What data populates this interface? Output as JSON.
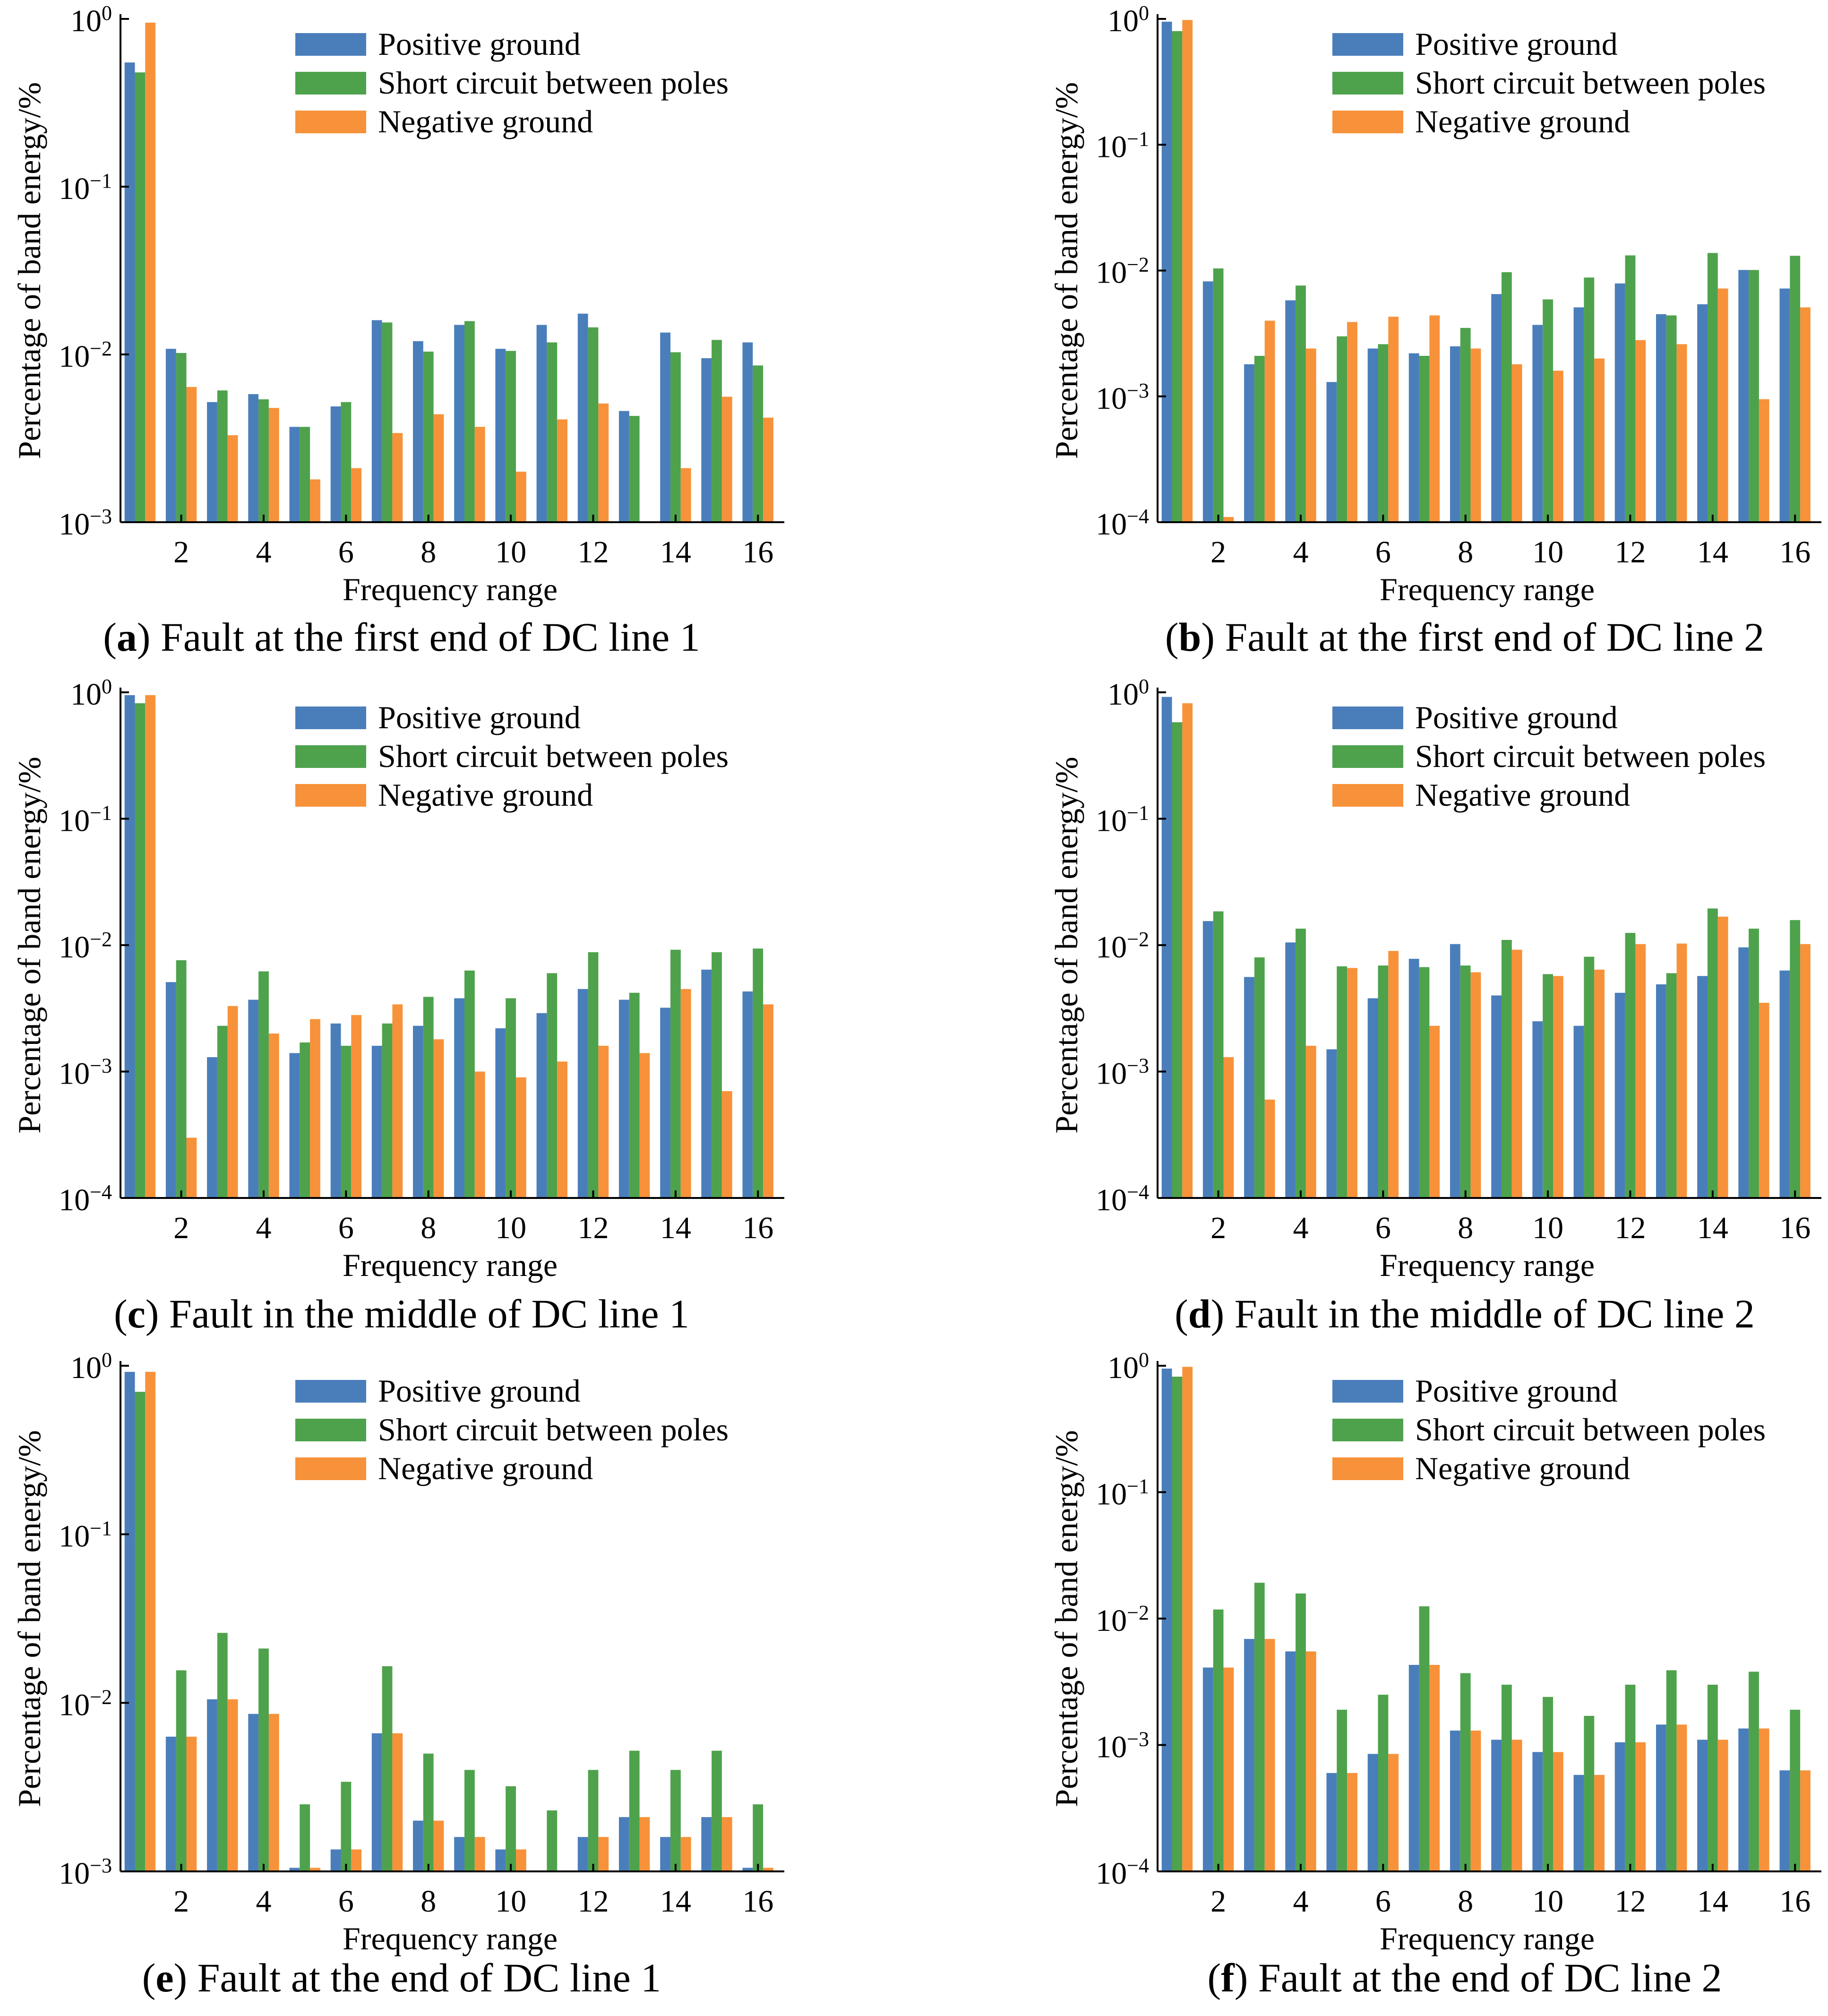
{
  "figure": {
    "legend": [
      "Positive ground",
      "Short circuit between poles",
      "Negative ground"
    ],
    "series_colors": [
      "#4a7ebb",
      "#4ea24c",
      "#f7923a"
    ],
    "xlabel": "Frequency range",
    "ylabel": "Percentage of band energy/%"
  },
  "chart_data": [
    {
      "type": "bar",
      "id": "a",
      "label_letter": "a",
      "caption": " Fault at the first end of DC line 1",
      "yscale": "log",
      "ylim": [
        0.001,
        1
      ],
      "ytick_exponents": [
        "0",
        "−1",
        "−2",
        "−3"
      ],
      "categories": [
        1,
        2,
        3,
        4,
        5,
        6,
        7,
        8,
        9,
        10,
        11,
        12,
        13,
        14,
        15,
        16
      ],
      "xticks": [
        2,
        4,
        6,
        8,
        10,
        12,
        14,
        16
      ],
      "xlabel": "Frequency range",
      "ylabel": "Percentage of band energy/%",
      "series": [
        {
          "name": "Positive ground",
          "values": [
            0.55,
            0.0108,
            0.0052,
            0.0058,
            0.0037,
            0.0049,
            0.016,
            0.012,
            0.015,
            0.0108,
            0.015,
            0.0175,
            0.0046,
            0.0135,
            0.0095,
            0.0118
          ]
        },
        {
          "name": "Short circuit between poles",
          "values": [
            0.48,
            0.0102,
            0.0061,
            0.0054,
            0.0037,
            0.0052,
            0.0155,
            0.0104,
            0.0158,
            0.0105,
            0.0118,
            0.0145,
            0.0043,
            0.0103,
            0.0122,
            0.0086
          ]
        },
        {
          "name": "Negative ground",
          "values": [
            0.95,
            0.0064,
            0.0033,
            0.0048,
            0.0018,
            0.0021,
            0.0034,
            0.0044,
            0.0037,
            0.002,
            0.0041,
            0.0051,
            0.001,
            0.0021,
            0.0056,
            0.0042
          ]
        }
      ]
    },
    {
      "type": "bar",
      "id": "b",
      "label_letter": "b",
      "caption": " Fault at the first end of DC line 2",
      "yscale": "log",
      "ylim": [
        0.0001,
        1
      ],
      "ytick_exponents": [
        "0",
        "−1",
        "−2",
        "−3",
        "−4"
      ],
      "categories": [
        1,
        2,
        3,
        4,
        5,
        6,
        7,
        8,
        9,
        10,
        11,
        12,
        13,
        14,
        15,
        16
      ],
      "xticks": [
        2,
        4,
        6,
        8,
        10,
        12,
        14,
        16
      ],
      "xlabel": "Frequency range",
      "ylabel": "Percentage of band energy/%",
      "series": [
        {
          "name": "Positive ground",
          "values": [
            0.95,
            0.0082,
            0.0018,
            0.0058,
            0.0013,
            0.0024,
            0.0022,
            0.0025,
            0.0065,
            0.0037,
            0.0051,
            0.0079,
            0.0045,
            0.0054,
            0.0101,
            0.0072
          ]
        },
        {
          "name": "Short circuit between poles",
          "values": [
            0.8,
            0.0104,
            0.0021,
            0.0076,
            0.003,
            0.0026,
            0.0021,
            0.0035,
            0.0097,
            0.0059,
            0.0088,
            0.0132,
            0.0044,
            0.0138,
            0.0101,
            0.0131
          ]
        },
        {
          "name": "Negative ground",
          "values": [
            0.98,
            0.00011,
            0.004,
            0.0024,
            0.0039,
            0.0043,
            0.0044,
            0.0024,
            0.0018,
            0.0016,
            0.002,
            0.0028,
            0.0026,
            0.0072,
            0.00095,
            0.0051
          ]
        }
      ]
    },
    {
      "type": "bar",
      "id": "c",
      "label_letter": "c",
      "caption": " Fault in the middle of DC line 1",
      "yscale": "log",
      "ylim": [
        0.0001,
        1
      ],
      "ytick_exponents": [
        "0",
        "−1",
        "−2",
        "−3",
        "−4"
      ],
      "categories": [
        1,
        2,
        3,
        4,
        5,
        6,
        7,
        8,
        9,
        10,
        11,
        12,
        13,
        14,
        15,
        16
      ],
      "xticks": [
        2,
        4,
        6,
        8,
        10,
        12,
        14,
        16
      ],
      "xlabel": "Frequency range",
      "ylabel": "Percentage of band energy/%",
      "series": [
        {
          "name": "Positive ground",
          "values": [
            0.95,
            0.0051,
            0.0013,
            0.0037,
            0.0014,
            0.0024,
            0.0016,
            0.0023,
            0.0038,
            0.0022,
            0.0029,
            0.0045,
            0.0037,
            0.0032,
            0.0064,
            0.0043
          ]
        },
        {
          "name": "Short circuit between poles",
          "values": [
            0.82,
            0.0076,
            0.0023,
            0.0062,
            0.0017,
            0.0016,
            0.0024,
            0.0039,
            0.0063,
            0.0038,
            0.006,
            0.0088,
            0.0042,
            0.0092,
            0.0088,
            0.0094
          ]
        },
        {
          "name": "Negative ground",
          "values": [
            0.95,
            0.0003,
            0.0033,
            0.002,
            0.0026,
            0.0028,
            0.0034,
            0.0018,
            0.001,
            0.0009,
            0.0012,
            0.0016,
            0.0014,
            0.0045,
            0.0007,
            0.0034
          ]
        }
      ]
    },
    {
      "type": "bar",
      "id": "d",
      "label_letter": "d",
      "caption": " Fault in the middle of DC line 2",
      "yscale": "log",
      "ylim": [
        0.0001,
        1
      ],
      "ytick_exponents": [
        "0",
        "−1",
        "−2",
        "−3",
        "−4"
      ],
      "categories": [
        1,
        2,
        3,
        4,
        5,
        6,
        7,
        8,
        9,
        10,
        11,
        12,
        13,
        14,
        15,
        16
      ],
      "xticks": [
        2,
        4,
        6,
        8,
        10,
        12,
        14,
        16
      ],
      "xlabel": "Frequency range",
      "ylabel": "Percentage of band energy/%",
      "series": [
        {
          "name": "Positive ground",
          "values": [
            0.92,
            0.0155,
            0.0056,
            0.0105,
            0.0015,
            0.0038,
            0.0078,
            0.0102,
            0.004,
            0.0025,
            0.0023,
            0.0042,
            0.0049,
            0.0057,
            0.0096,
            0.0063
          ]
        },
        {
          "name": "Short circuit between poles",
          "values": [
            0.58,
            0.0185,
            0.008,
            0.0135,
            0.0068,
            0.0069,
            0.0067,
            0.0069,
            0.011,
            0.0059,
            0.0081,
            0.0125,
            0.006,
            0.0195,
            0.0135,
            0.0158
          ]
        },
        {
          "name": "Negative ground",
          "values": [
            0.82,
            0.0013,
            0.0006,
            0.0016,
            0.0066,
            0.009,
            0.0023,
            0.0061,
            0.0092,
            0.0057,
            0.0064,
            0.0102,
            0.0103,
            0.0168,
            0.0035,
            0.0102
          ]
        }
      ]
    },
    {
      "type": "bar",
      "id": "e",
      "label_letter": "e",
      "caption": " Fault at the end of DC line 1",
      "yscale": "log",
      "ylim": [
        0.001,
        1
      ],
      "ytick_exponents": [
        "0",
        "−1",
        "−2",
        "−3"
      ],
      "categories": [
        1,
        2,
        3,
        4,
        5,
        6,
        7,
        8,
        9,
        10,
        11,
        12,
        13,
        14,
        15,
        16
      ],
      "xticks": [
        2,
        4,
        6,
        8,
        10,
        12,
        14,
        16
      ],
      "xlabel": "Frequency range",
      "ylabel": "Percentage of band energy/%",
      "series": [
        {
          "name": "Positive ground",
          "values": [
            0.92,
            0.0063,
            0.0105,
            0.0086,
            0.00105,
            0.00135,
            0.0066,
            0.002,
            0.0016,
            0.00135,
            0.001,
            0.0016,
            0.0021,
            0.0016,
            0.0021,
            0.00105
          ]
        },
        {
          "name": "Short circuit between poles",
          "values": [
            0.7,
            0.0156,
            0.026,
            0.021,
            0.0025,
            0.0034,
            0.0165,
            0.005,
            0.004,
            0.0032,
            0.0023,
            0.004,
            0.0052,
            0.004,
            0.0052,
            0.0025
          ]
        },
        {
          "name": "Negative ground",
          "values": [
            0.92,
            0.0063,
            0.0105,
            0.0086,
            0.00105,
            0.00135,
            0.0066,
            0.002,
            0.0016,
            0.00135,
            0.001,
            0.0016,
            0.0021,
            0.0016,
            0.0021,
            0.00105
          ]
        }
      ]
    },
    {
      "type": "bar",
      "id": "f",
      "label_letter": "f",
      "caption": " Fault at the end of DC line 2",
      "yscale": "log",
      "ylim": [
        0.0001,
        1
      ],
      "ytick_exponents": [
        "0",
        "−1",
        "−2",
        "−3",
        "−4"
      ],
      "categories": [
        1,
        2,
        3,
        4,
        5,
        6,
        7,
        8,
        9,
        10,
        11,
        12,
        13,
        14,
        15,
        16
      ],
      "xticks": [
        2,
        4,
        6,
        8,
        10,
        12,
        14,
        16
      ],
      "xlabel": "Frequency range",
      "ylabel": "Percentage of band energy/%",
      "series": [
        {
          "name": "Positive ground",
          "values": [
            0.95,
            0.0041,
            0.0069,
            0.0055,
            0.0006,
            0.00085,
            0.0043,
            0.0013,
            0.0011,
            0.00088,
            0.00058,
            0.00105,
            0.00145,
            0.0011,
            0.00135,
            0.00063
          ]
        },
        {
          "name": "Short circuit between poles",
          "values": [
            0.82,
            0.0118,
            0.0192,
            0.0158,
            0.0019,
            0.0025,
            0.0125,
            0.0037,
            0.003,
            0.0024,
            0.0017,
            0.003,
            0.0039,
            0.003,
            0.0038,
            0.0019
          ]
        },
        {
          "name": "Negative ground",
          "values": [
            0.98,
            0.0041,
            0.0069,
            0.0055,
            0.0006,
            0.00085,
            0.0043,
            0.0013,
            0.0011,
            0.00088,
            0.00058,
            0.00105,
            0.00145,
            0.0011,
            0.00135,
            0.00063
          ]
        }
      ]
    }
  ]
}
